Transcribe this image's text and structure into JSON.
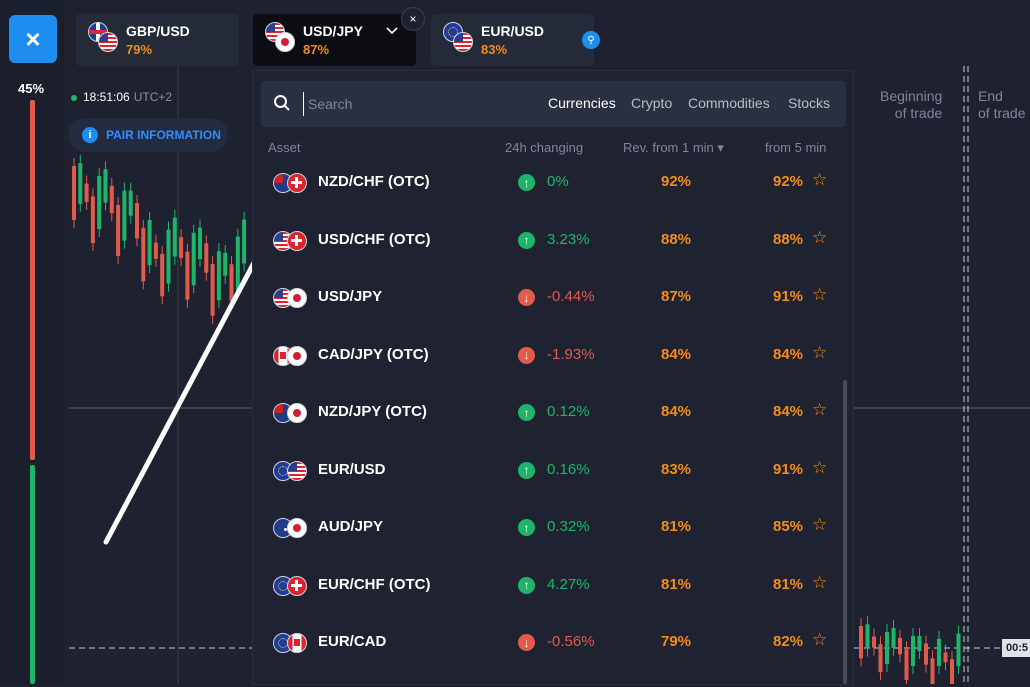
{
  "rail": {
    "close_icon": "×",
    "percent": "45%"
  },
  "tabs": [
    {
      "name": "GBP/USD",
      "pct": "79%",
      "flags": [
        "uk",
        "us"
      ]
    },
    {
      "name": "USD/JPY",
      "pct": "87%",
      "flags": [
        "us",
        "jp"
      ]
    },
    {
      "name": "EUR/USD",
      "pct": "83%",
      "flags": [
        "eu",
        "us"
      ]
    }
  ],
  "tab_close_icon": "×",
  "pin_icon": "⚲",
  "chart": {
    "time": "18:51:06",
    "tz": "UTC+2",
    "pair_info": "PAIR INFORMATION",
    "pair_info_icon": "i",
    "beginning_line1": "Beginning",
    "beginning_line2": "of trade",
    "end_line1": "End",
    "end_line2": "of trade",
    "price_tag": "00:5"
  },
  "search": {
    "placeholder": "Search",
    "categories": [
      "Currencies",
      "Crypto",
      "Commodities",
      "Stocks"
    ]
  },
  "columns": {
    "asset": "Asset",
    "change": "24h changing",
    "rev1": "Rev. from 1 min ▾",
    "rev5": "from 5 min"
  },
  "rows": [
    {
      "name": "NZD/CHF (OTC)",
      "flags": [
        "nz",
        "ch"
      ],
      "dir": "up",
      "arrow": "↑",
      "change": "0%",
      "rev1": "92%",
      "rev5": "92%",
      "star": "☆"
    },
    {
      "name": "USD/CHF (OTC)",
      "flags": [
        "us",
        "ch"
      ],
      "dir": "up",
      "arrow": "↑",
      "change": "3.23%",
      "rev1": "88%",
      "rev5": "88%",
      "star": "☆"
    },
    {
      "name": "USD/JPY",
      "flags": [
        "us",
        "jp"
      ],
      "dir": "down",
      "arrow": "↓",
      "change": "-0.44%",
      "rev1": "87%",
      "rev5": "91%",
      "star": "☆"
    },
    {
      "name": "CAD/JPY (OTC)",
      "flags": [
        "ca",
        "jp"
      ],
      "dir": "down",
      "arrow": "↓",
      "change": "-1.93%",
      "rev1": "84%",
      "rev5": "84%",
      "star": "☆"
    },
    {
      "name": "NZD/JPY (OTC)",
      "flags": [
        "nz",
        "jp"
      ],
      "dir": "up",
      "arrow": "↑",
      "change": "0.12%",
      "rev1": "84%",
      "rev5": "84%",
      "star": "☆"
    },
    {
      "name": "EUR/USD",
      "flags": [
        "eu",
        "us"
      ],
      "dir": "up",
      "arrow": "↑",
      "change": "0.16%",
      "rev1": "83%",
      "rev5": "91%",
      "star": "☆"
    },
    {
      "name": "AUD/JPY",
      "flags": [
        "au",
        "jp"
      ],
      "dir": "up",
      "arrow": "↑",
      "change": "0.32%",
      "rev1": "81%",
      "rev5": "85%",
      "star": "☆"
    },
    {
      "name": "EUR/CHF (OTC)",
      "flags": [
        "eu",
        "ch"
      ],
      "dir": "up",
      "arrow": "↑",
      "change": "4.27%",
      "rev1": "81%",
      "rev5": "81%",
      "star": "☆"
    },
    {
      "name": "EUR/CAD",
      "flags": [
        "eu",
        "ca"
      ],
      "dir": "down",
      "arrow": "↓",
      "change": "-0.56%",
      "rev1": "79%",
      "rev5": "82%",
      "star": "☆"
    }
  ]
}
